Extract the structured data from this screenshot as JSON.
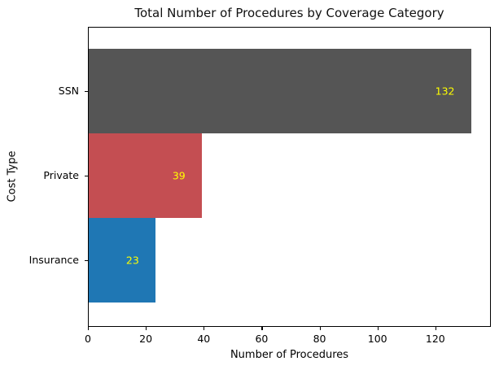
{
  "chart_data": {
    "type": "bar",
    "orientation": "horizontal",
    "title": "Total Number of Procedures by Coverage Category",
    "xlabel": "Number of Procedures",
    "ylabel": "Cost Type",
    "categories": [
      "SSN",
      "Private",
      "Insurance"
    ],
    "values": [
      132,
      39,
      23
    ],
    "bar_colors": [
      "#555555",
      "#c44e52",
      "#1f77b4"
    ],
    "value_label_color": "#ffff00",
    "value_labels": [
      "132",
      "39",
      "23"
    ],
    "xticks": [
      "0",
      "20",
      "40",
      "60",
      "80",
      "100",
      "120"
    ],
    "xtick_values": [
      0,
      20,
      40,
      60,
      80,
      100,
      120
    ],
    "xlim": [
      0,
      138.6
    ],
    "grid": false,
    "spine_color": "#000000",
    "background_color": "#ffffff"
  }
}
